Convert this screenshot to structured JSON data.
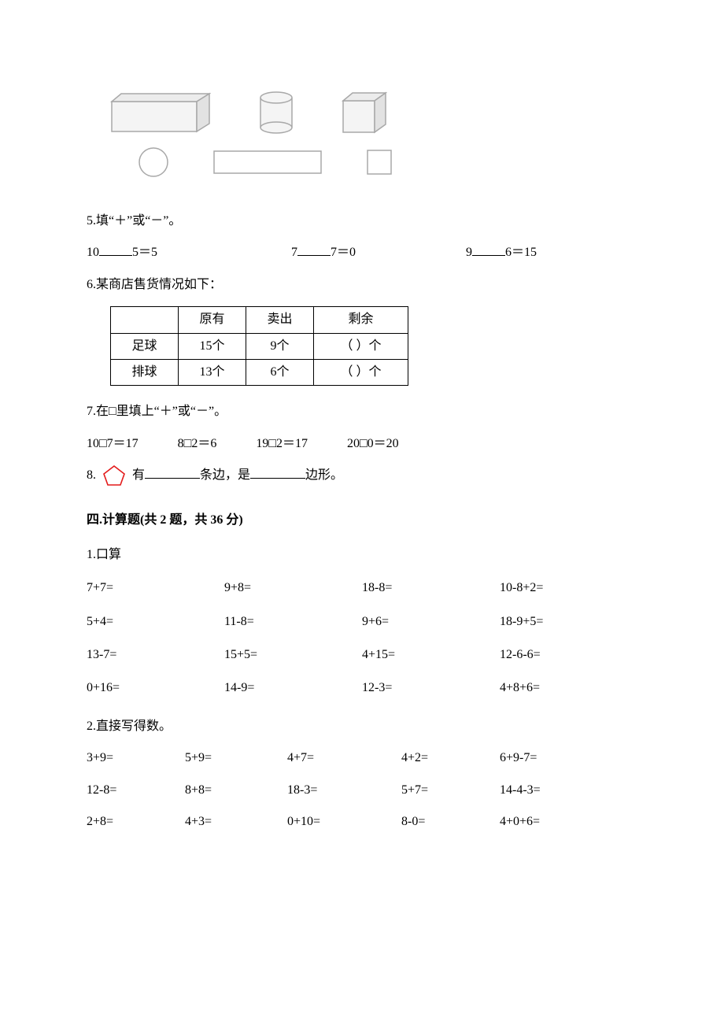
{
  "shapes": {
    "row1": [
      "cuboid",
      "cylinder",
      "cube"
    ],
    "row2": [
      "circle",
      "rectangle",
      "square"
    ],
    "stroke": "#b0b0b0",
    "fill": "#f4f4f4"
  },
  "q5": {
    "label": "5.填“＋”或“－”。",
    "items": [
      "10",
      "5＝5",
      "7",
      "7＝0",
      "9",
      "6＝15"
    ]
  },
  "q6": {
    "label": "6.某商店售货情况如下：",
    "headers": [
      "",
      "原有",
      "卖出",
      "剩余"
    ],
    "rows": [
      [
        "足球",
        "15个",
        "9个",
        "（    ）个"
      ],
      [
        "排球",
        "13个",
        "6个",
        "（    ）个"
      ]
    ]
  },
  "q7": {
    "label": "7.在□里填上“＋”或“－”。",
    "items": [
      "10□7＝17",
      "8□2＝6",
      "19□2＝17",
      "20□0＝20"
    ]
  },
  "q8": {
    "prefix": "8.",
    "mid1": "有",
    "mid2": "条边，是",
    "suffix": "边形。",
    "pentagon_color": "#e31a1a"
  },
  "section4": {
    "title": "四.计算题(共 2 题，共 36 分)",
    "p1_label": "1.口算",
    "p1_rows": [
      [
        "7+7=",
        "9+8=",
        "18-8=",
        "10-8+2="
      ],
      [
        "5+4=",
        "11-8=",
        "9+6=",
        "18-9+5="
      ],
      [
        "13-7=",
        "15+5=",
        "4+15=",
        "12-6-6="
      ],
      [
        "0+16=",
        "14-9=",
        "12-3=",
        "4+8+6="
      ]
    ],
    "p2_label": "2.直接写得数。",
    "p2_rows": [
      [
        "3+9=",
        "5+9=",
        "4+7=",
        "4+2=",
        "6+9-7="
      ],
      [
        "12-8=",
        "8+8=",
        "18-3=",
        "5+7=",
        "14-4-3="
      ],
      [
        "2+8=",
        "4+3=",
        "0+10=",
        "8-0=",
        "4+0+6="
      ]
    ]
  }
}
